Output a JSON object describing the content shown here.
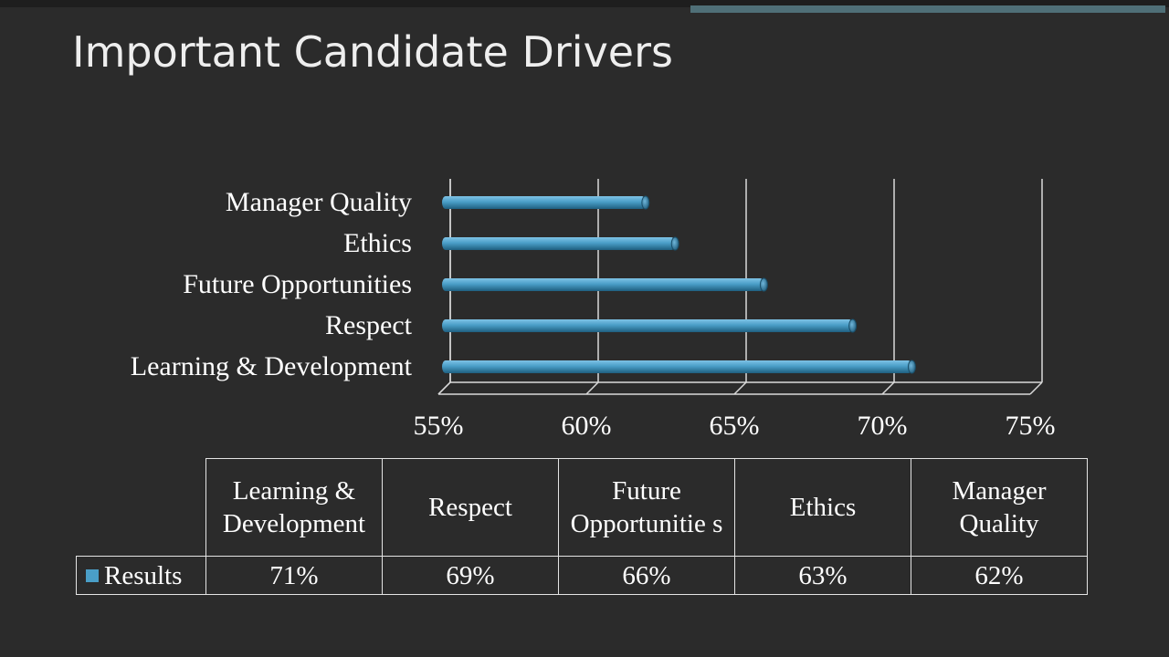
{
  "slide": {
    "title": "Important Candidate Drivers"
  },
  "chart_data": {
    "type": "bar",
    "orientation": "horizontal",
    "style": "3d-cylinder",
    "categories": [
      "Learning & Development",
      "Respect",
      "Future Opportunities",
      "Ethics",
      "Manager Quality"
    ],
    "series": [
      {
        "name": "Results",
        "values": [
          71,
          69,
          66,
          63,
          62
        ],
        "color": "#4a9ec7"
      }
    ],
    "xlim": [
      55,
      75
    ],
    "xticks": [
      "55%",
      "60%",
      "65%",
      "70%",
      "75%"
    ],
    "grid": true,
    "legend": "data-table",
    "data_table": {
      "headers": [
        "Learning & Development",
        "Respect",
        "Future Opportunitie s",
        "Ethics",
        "Manager Quality"
      ],
      "row_label": "Results",
      "values": [
        "71%",
        "69%",
        "66%",
        "63%",
        "62%"
      ]
    }
  },
  "colors": {
    "background": "#2b2b2b",
    "bar": "#4a9ec7",
    "grid": "#d9d9d9",
    "text": "#ffffff"
  }
}
